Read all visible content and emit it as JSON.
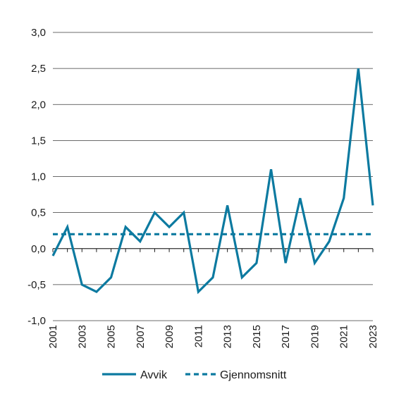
{
  "chart_data": {
    "type": "line",
    "x": [
      2001,
      2002,
      2003,
      2004,
      2005,
      2006,
      2007,
      2008,
      2009,
      2010,
      2011,
      2012,
      2013,
      2014,
      2015,
      2016,
      2017,
      2018,
      2019,
      2020,
      2021,
      2022,
      2023
    ],
    "x_tick_labels": [
      "2001",
      "2003",
      "2005",
      "2007",
      "2009",
      "2011",
      "2013",
      "2015",
      "2017",
      "2019",
      "2021",
      "2023"
    ],
    "y_tick_labels": [
      "3,0",
      "2,5",
      "2,0",
      "1,5",
      "1,0",
      "0,5",
      "0,0",
      "-0,5",
      "-1,0"
    ],
    "ylim": [
      -1.0,
      3.0
    ],
    "grid": "horizontal",
    "legend_position": "bottom",
    "series": [
      {
        "name": "Avvik",
        "style": "solid",
        "color": "#0c7aa0",
        "values": [
          -0.1,
          0.3,
          -0.5,
          -0.6,
          -0.4,
          0.3,
          0.1,
          0.5,
          0.3,
          0.5,
          -0.6,
          -0.4,
          0.6,
          -0.4,
          -0.2,
          1.1,
          -0.2,
          0.7,
          -0.2,
          0.1,
          0.7,
          2.5,
          0.6
        ]
      },
      {
        "name": "Gjennomsnitt",
        "style": "dashed",
        "color": "#0c7aa0",
        "values": [
          0.2,
          0.2,
          0.2,
          0.2,
          0.2,
          0.2,
          0.2,
          0.2,
          0.2,
          0.2,
          0.2,
          0.2,
          0.2,
          0.2,
          0.2,
          0.2,
          0.2,
          0.2,
          0.2,
          0.2,
          0.2,
          0.2,
          0.2
        ]
      }
    ]
  }
}
